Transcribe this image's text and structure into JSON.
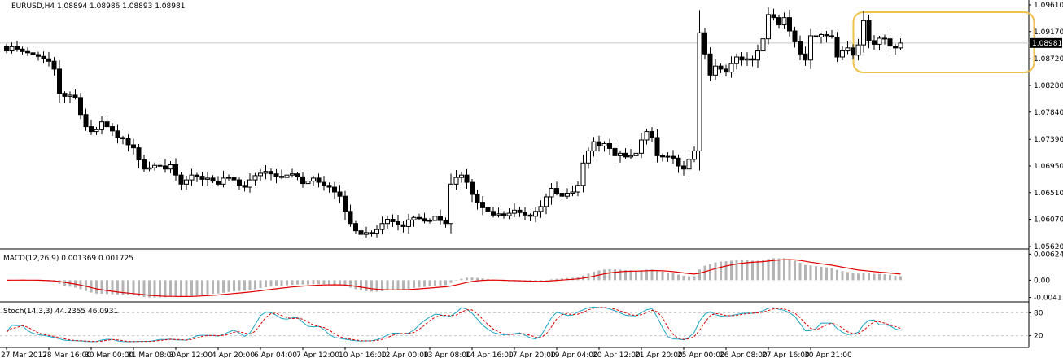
{
  "chart_data": [
    {
      "type": "candlestick",
      "title": "EURUSD,H4 1.08894 1.08986 1.08893 1.08981",
      "ylim": [
        1.0562,
        1.0961
      ],
      "y_ticks": [
        "1.09610",
        "1.09170",
        "1.08720",
        "1.08280",
        "1.07840",
        "1.07390",
        "1.06950",
        "1.06510",
        "1.06070",
        "1.05620"
      ],
      "price_label": "1.08981",
      "price_value": 1.08981,
      "grid": false,
      "highlight": {
        "from_bar": 161,
        "to_bar": 193,
        "color": "#f0c24b"
      },
      "x_labels": [
        {
          "bar": 0,
          "text": "27 Mar 2017"
        },
        {
          "bar": 8,
          "text": "28 Mar 16:00"
        },
        {
          "bar": 16,
          "text": "30 Mar 00:00"
        },
        {
          "bar": 24,
          "text": "31 Mar 08:00"
        },
        {
          "bar": 32,
          "text": "3 Apr 12:00"
        },
        {
          "bar": 40,
          "text": "4 Apr 20:00"
        },
        {
          "bar": 48,
          "text": "6 Apr 04:00"
        },
        {
          "bar": 56,
          "text": "7 Apr 12:00"
        },
        {
          "bar": 64,
          "text": "10 Apr 16:00"
        },
        {
          "bar": 72,
          "text": "12 Apr 00:00"
        },
        {
          "bar": 80,
          "text": "13 Apr 08:00"
        },
        {
          "bar": 88,
          "text": "14 Apr 16:00"
        },
        {
          "bar": 96,
          "text": "17 Apr 20:00"
        },
        {
          "bar": 104,
          "text": "19 Apr 04:00"
        },
        {
          "bar": 112,
          "text": "20 Apr 12:00"
        },
        {
          "bar": 120,
          "text": "21 Apr 20:00"
        },
        {
          "bar": 128,
          "text": "25 Apr 00:00"
        },
        {
          "bar": 136,
          "text": "26 Apr 08:00"
        },
        {
          "bar": 144,
          "text": "27 Apr 16:00"
        },
        {
          "bar": 152,
          "text": "30 Apr 21:00"
        }
      ],
      "closes": [
        1.0885,
        1.0892,
        1.0888,
        1.0884,
        1.0882,
        1.0879,
        1.0876,
        1.0872,
        1.0868,
        1.0855,
        1.0815,
        1.081,
        1.0812,
        1.0808,
        1.078,
        1.076,
        1.0752,
        1.0755,
        1.0768,
        1.076,
        1.0753,
        1.0742,
        1.074,
        1.073,
        1.0725,
        1.0705,
        1.069,
        1.0692,
        1.0696,
        1.0695,
        1.069,
        1.0697,
        1.068,
        1.0665,
        1.0672,
        1.068,
        1.0678,
        1.0673,
        1.0675,
        1.067,
        1.0665,
        1.0675,
        1.0676,
        1.0672,
        1.0663,
        1.066,
        1.0672,
        1.0679,
        1.0683,
        1.0686,
        1.0682,
        1.0678,
        1.0676,
        1.068,
        1.0682,
        1.0677,
        1.0666,
        1.067,
        1.0675,
        1.0668,
        1.0663,
        1.066,
        1.0652,
        1.0645,
        1.062,
        1.06,
        1.0588,
        1.0582,
        1.0585,
        1.0584,
        1.059,
        1.06,
        1.0607,
        1.0603,
        1.0598,
        1.0595,
        1.0606,
        1.061,
        1.0608,
        1.0604,
        1.0605,
        1.0612,
        1.0605,
        1.06,
        1.0665,
        1.0676,
        1.068,
        1.0668,
        1.0648,
        1.0635,
        1.0626,
        1.062,
        1.0614,
        1.0616,
        1.0613,
        1.0617,
        1.0622,
        1.0618,
        1.0614,
        1.0612,
        1.062,
        1.0628,
        1.0644,
        1.0658,
        1.065,
        1.0645,
        1.065,
        1.0652,
        1.0663,
        1.07,
        1.072,
        1.0735,
        1.0728,
        1.0732,
        1.0724,
        1.0712,
        1.0716,
        1.071,
        1.0712,
        1.0716,
        1.0738,
        1.0752,
        1.0742,
        1.0712,
        1.071,
        1.0711,
        1.0708,
        1.0695,
        1.069,
        1.0706,
        1.072,
        1.0915,
        1.088,
        1.0845,
        1.086,
        1.0855,
        1.085,
        1.0864,
        1.0875,
        1.087,
        1.0872,
        1.087,
        1.0885,
        1.0905,
        1.0945,
        1.094,
        1.0928,
        1.094,
        1.0918,
        1.09,
        1.088,
        1.087,
        1.091,
        1.0908,
        1.0912,
        1.091,
        1.0908,
        1.0875,
        1.0885,
        1.089,
        1.0878,
        1.0895,
        1.0935,
        1.0902,
        1.0896,
        1.0906,
        1.0905,
        1.0893,
        1.089,
        1.0898
      ]
    },
    {
      "type": "bar+line",
      "title": "MACD(12,26,9) 0.001369 0.001725",
      "ylim": [
        -0.005,
        0.0069
      ],
      "y_ticks": [
        "0.006246",
        "0.00",
        "-0.004135"
      ],
      "note_series": [
        "MACD histogram (grey)",
        "Signal (red)"
      ]
    },
    {
      "type": "line",
      "title": "Stoch(14,3,3) 44.2355 46.0931",
      "ylim": [
        0,
        100
      ],
      "y_ticks": [
        "80",
        "20"
      ],
      "levels": [
        80,
        20
      ]
    }
  ]
}
